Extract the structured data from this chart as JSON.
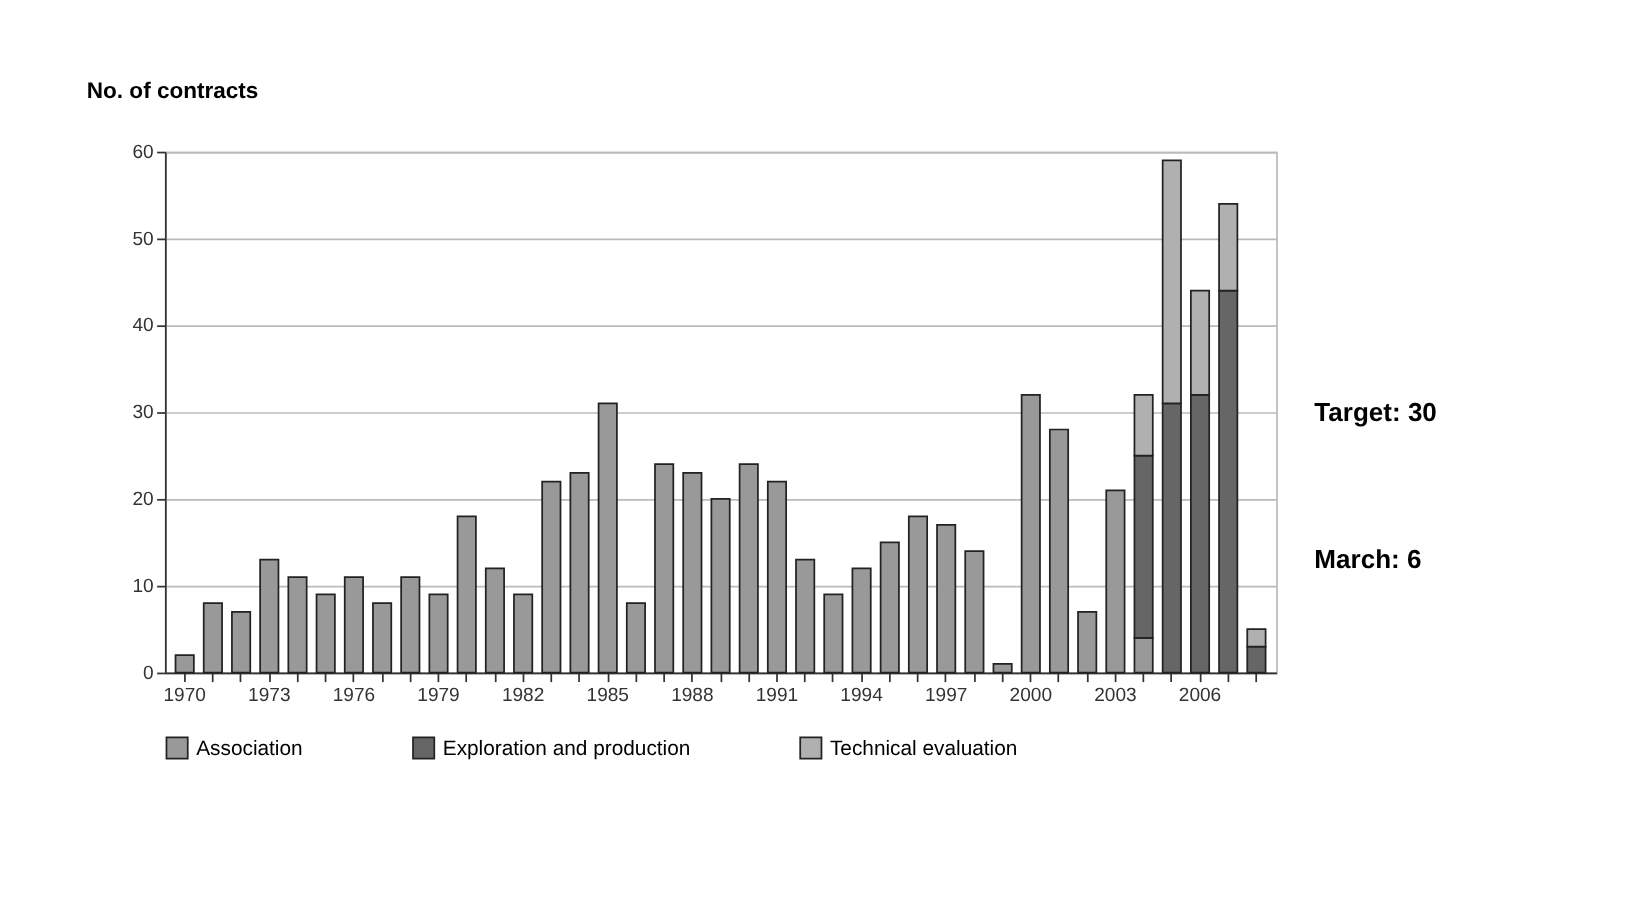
{
  "chart_data": {
    "type": "bar",
    "title": "No. of contracts",
    "stacked": true,
    "categories": [
      "1970",
      null,
      null,
      "1973",
      null,
      null,
      "1976",
      null,
      null,
      "1979",
      null,
      null,
      "1982",
      null,
      null,
      "1985",
      null,
      null,
      "1988",
      null,
      null,
      "1991",
      null,
      null,
      "1994",
      null,
      null,
      "1997",
      null,
      null,
      "2000",
      null,
      null,
      "2003",
      null,
      null,
      "2006",
      null,
      null
    ],
    "series": [
      {
        "name": "Association",
        "color": "#999999",
        "values": [
          2,
          8,
          7,
          13,
          11,
          9,
          11,
          8,
          11,
          9,
          18,
          12,
          9,
          22,
          23,
          31,
          8,
          24,
          23,
          20,
          24,
          22,
          13,
          9,
          12,
          15,
          18,
          17,
          14,
          1,
          32,
          28,
          7,
          21,
          4,
          null,
          null,
          null,
          null
        ]
      },
      {
        "name": "Exploration and production",
        "color": "#666666",
        "values": [
          null,
          null,
          null,
          null,
          null,
          null,
          null,
          null,
          null,
          null,
          null,
          null,
          null,
          null,
          null,
          null,
          null,
          null,
          null,
          null,
          null,
          null,
          null,
          null,
          null,
          null,
          null,
          null,
          null,
          null,
          null,
          null,
          null,
          null,
          21,
          31,
          32,
          44,
          3
        ]
      },
      {
        "name": "Technical evaluation",
        "color": "#b0b0b0",
        "values": [
          null,
          null,
          null,
          null,
          null,
          null,
          null,
          null,
          null,
          null,
          null,
          null,
          null,
          null,
          null,
          null,
          null,
          null,
          null,
          null,
          null,
          null,
          null,
          null,
          null,
          null,
          null,
          null,
          null,
          null,
          null,
          null,
          null,
          null,
          7,
          28,
          12,
          10,
          2
        ]
      }
    ],
    "ylim": [
      0,
      60
    ],
    "yticks": [
      0,
      10,
      20,
      30,
      40,
      50,
      60
    ],
    "grid": "y",
    "legend": "bottom",
    "annotations": [
      "Target: 30",
      "March: 6"
    ]
  }
}
